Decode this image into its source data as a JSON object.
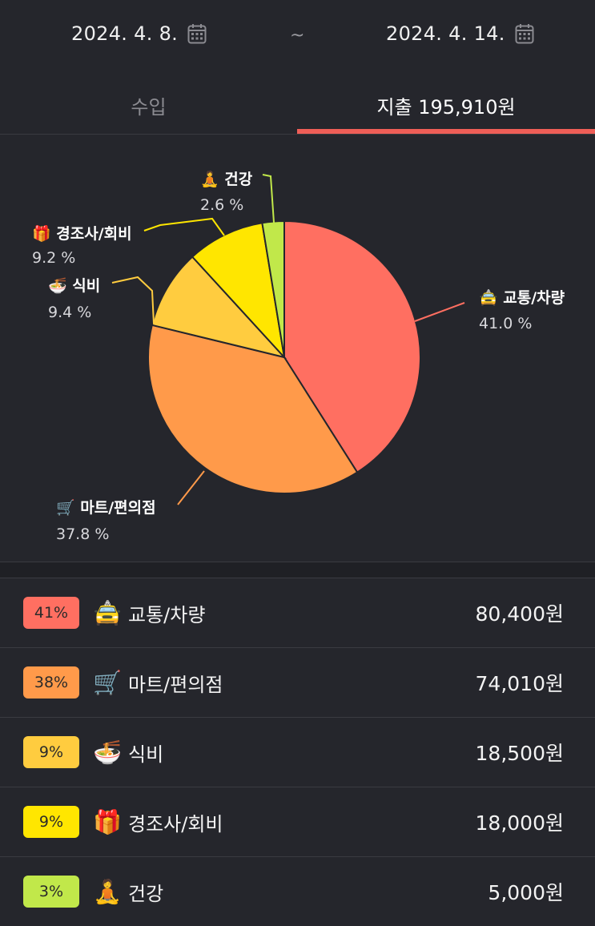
{
  "date_range": {
    "start": "2024. 4. 8.",
    "separator": "~",
    "end": "2024. 4. 14.",
    "calendar_icon": "calendar-icon"
  },
  "tabs": {
    "income_label": "수입",
    "expense_label": "지출 195,910원"
  },
  "chart_data": {
    "type": "pie",
    "slices": [
      {
        "emoji": "🚖",
        "label": "교통/차량",
        "percent_text": "41.0 %",
        "value": 41.0,
        "color": "#ff6f61"
      },
      {
        "emoji": "🛒",
        "label": "마트/편의점",
        "percent_text": "37.8 %",
        "value": 37.8,
        "color": "#ff9a4a"
      },
      {
        "emoji": "🍜",
        "label": "식비",
        "percent_text": "9.4 %",
        "value": 9.4,
        "color": "#ffcc3f"
      },
      {
        "emoji": "🎁",
        "label": "경조사/회비",
        "percent_text": "9.2 %",
        "value": 9.2,
        "color": "#ffe600"
      },
      {
        "emoji": "🧘",
        "label": "건강",
        "percent_text": "2.6 %",
        "value": 2.6,
        "color": "#c1e84a"
      }
    ]
  },
  "list": [
    {
      "badge": "41%",
      "badge_color": "#ff6f61",
      "emoji": "🚖",
      "name": "교통/차량",
      "amount": "80,400원"
    },
    {
      "badge": "38%",
      "badge_color": "#ff9a4a",
      "emoji": "🛒",
      "name": "마트/편의점",
      "amount": "74,010원"
    },
    {
      "badge": "9%",
      "badge_color": "#ffcc3f",
      "emoji": "🍜",
      "name": "식비",
      "amount": "18,500원"
    },
    {
      "badge": "9%",
      "badge_color": "#ffe600",
      "emoji": "🎁",
      "name": "경조사/회비",
      "amount": "18,000원"
    },
    {
      "badge": "3%",
      "badge_color": "#c1e84a",
      "emoji": "🧘",
      "name": "건강",
      "amount": "5,000원"
    }
  ]
}
